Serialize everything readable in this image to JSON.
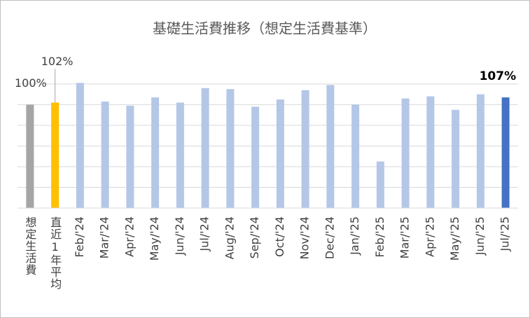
{
  "chart_data": {
    "type": "bar",
    "title": "基礎生活費推移（想定生活費基準）",
    "categories": [
      "想定生活費",
      "直近1年平均",
      "Feb/'24",
      "Mar/'24",
      "Apr/'24",
      "May/'24",
      "Jun/'24",
      "Jul/'24",
      "Aug/'24",
      "Sep/'24",
      "Oct/'24",
      "Nov/'24",
      "Dec/'24",
      "Jan/'25",
      "Feb/'25",
      "Mar/'25",
      "Apr/'25",
      "May/'25",
      "Jun/'25",
      "Jul/'25"
    ],
    "values": [
      100,
      102,
      121,
      103,
      99,
      107,
      102,
      116,
      115,
      98,
      105,
      114,
      119,
      100,
      45,
      106,
      108,
      95,
      110,
      107
    ],
    "value_labels": [
      "100%",
      "102%",
      null,
      null,
      null,
      null,
      null,
      null,
      null,
      null,
      null,
      null,
      null,
      null,
      null,
      null,
      null,
      null,
      null,
      "107%"
    ],
    "colors": [
      "#a5a5a5",
      "#ffc000",
      "#b4c7e7",
      "#b4c7e7",
      "#b4c7e7",
      "#b4c7e7",
      "#b4c7e7",
      "#b4c7e7",
      "#b4c7e7",
      "#b4c7e7",
      "#b4c7e7",
      "#b4c7e7",
      "#b4c7e7",
      "#b4c7e7",
      "#b4c7e7",
      "#b4c7e7",
      "#b4c7e7",
      "#b4c7e7",
      "#b4c7e7",
      "#4472c4"
    ],
    "ylim": [
      0,
      120
    ],
    "yticks": [
      0,
      20,
      40,
      60,
      80,
      100,
      120
    ],
    "grid": true
  }
}
